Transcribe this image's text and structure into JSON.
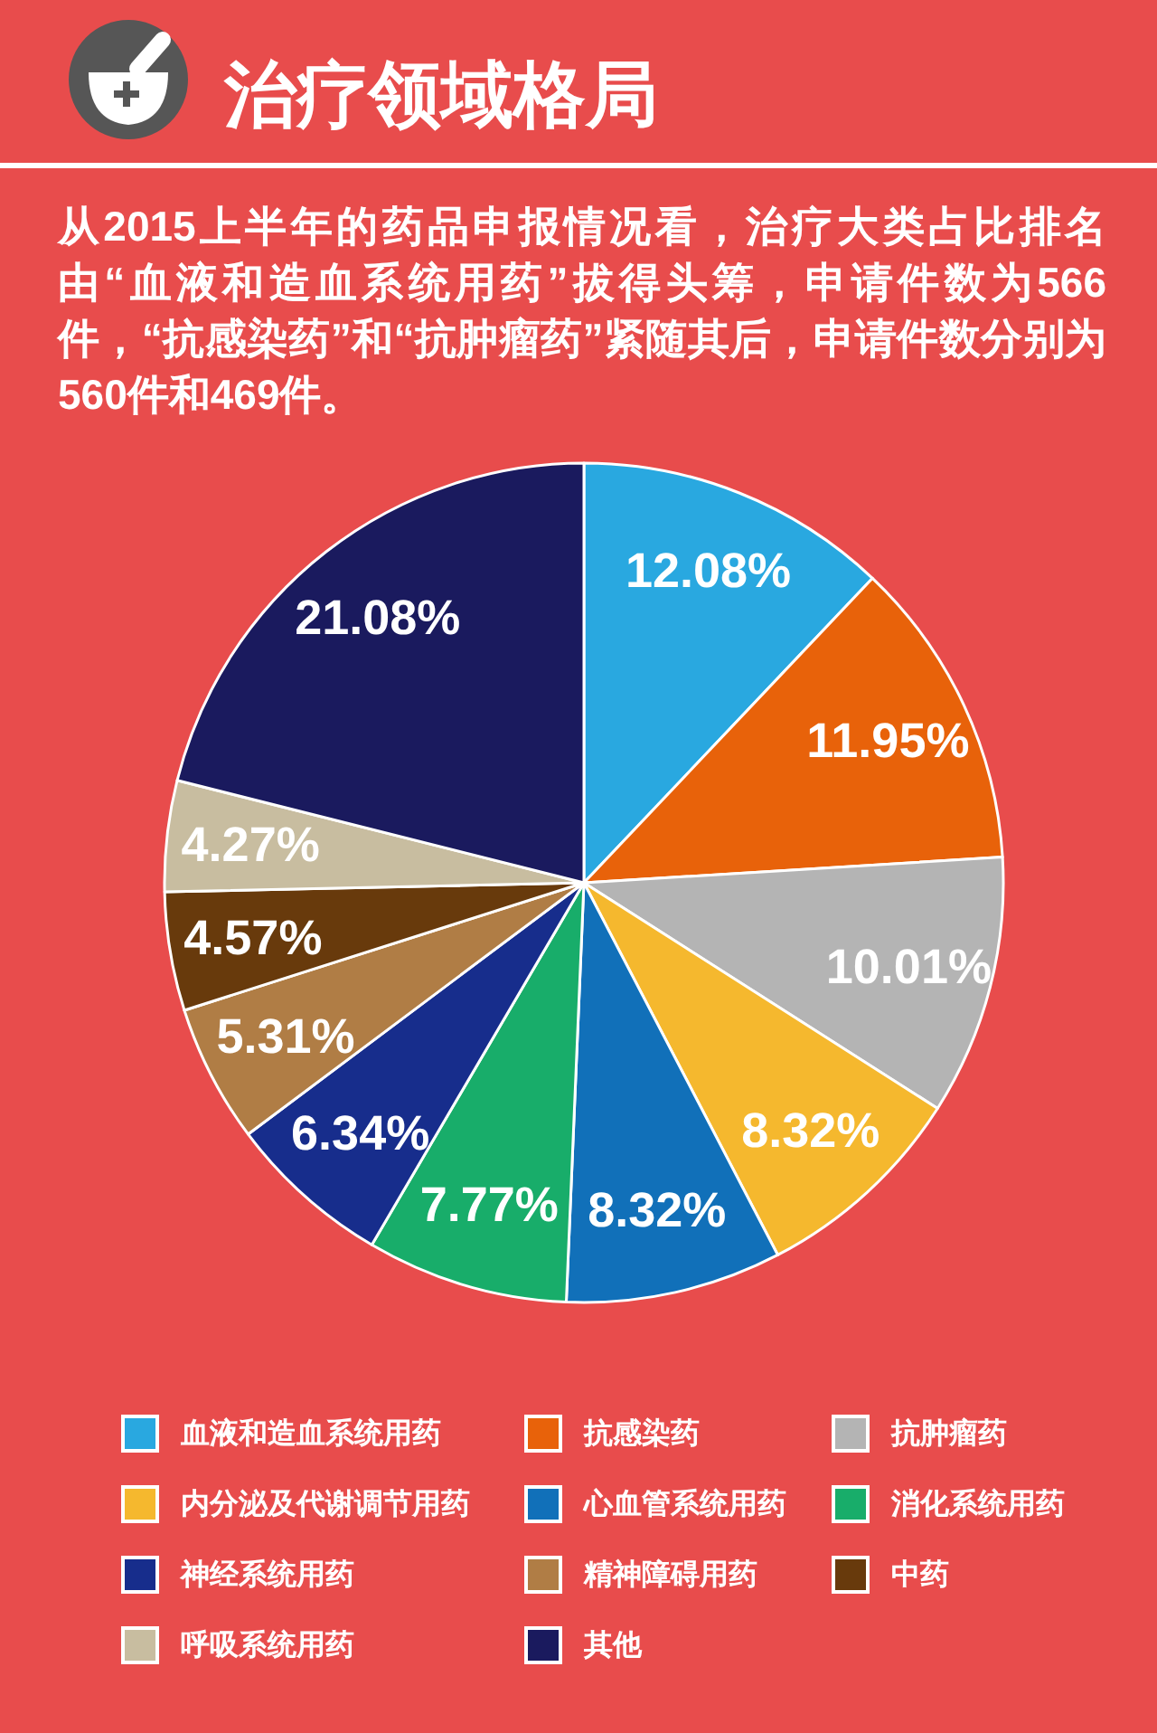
{
  "chart_data": {
    "type": "pie",
    "title": "治疗领域格局",
    "subtitle": "从2015上半年的药品申报情况看，治疗大类占比排名由“血液和造血系统用药”拔得头筹，申请件数为566件，“抗感染药”和“抗肿瘤药”紧随其后，申请件数分别为560件和469件。",
    "categories": [
      "血液和造血系统用药",
      "抗感染药",
      "抗肿瘤药",
      "内分泌及代谢调节用药",
      "心血管系统用药",
      "消化系统用药",
      "神经系统用药",
      "精神障碍用药",
      "中药",
      "呼吸系统用药",
      "其他"
    ],
    "values": [
      12.08,
      11.95,
      10.01,
      8.32,
      8.32,
      7.77,
      6.34,
      5.31,
      4.57,
      4.27,
      21.08
    ],
    "colors": [
      "#29a8e0",
      "#e8620a",
      "#b4b4b4",
      "#f5b82e",
      "#1170b9",
      "#18ad6a",
      "#172d8c",
      "#b07d45",
      "#683a0c",
      "#c8bda0",
      "#1a1a5e"
    ],
    "value_labels": [
      "12.08%",
      "11.95%",
      "10.01%",
      "8.32%",
      "8.32%",
      "7.77%",
      "6.34%",
      "5.31%",
      "4.57%",
      "4.27%",
      "21.08%"
    ],
    "legend": "bottom"
  }
}
